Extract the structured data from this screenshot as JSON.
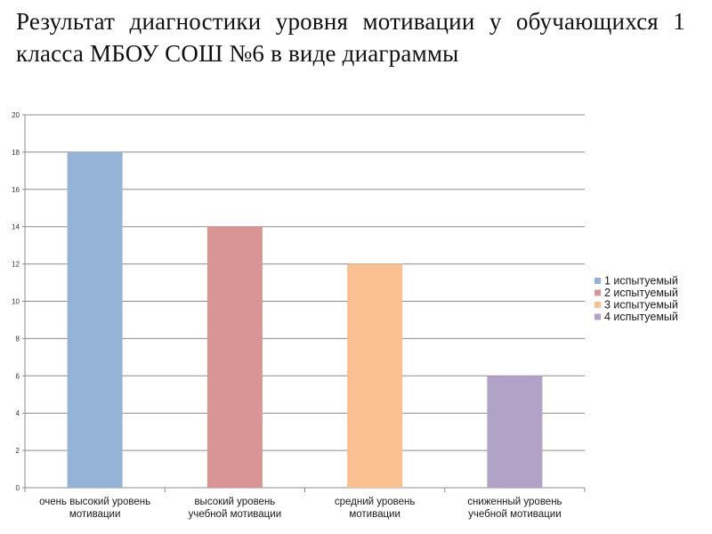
{
  "page": {
    "title": "Результат диагностики уровня мотивации у обучающихся 1 класса МБОУ СОШ №6 в виде диаграммы"
  },
  "chart_data": {
    "type": "bar",
    "title": "Результат диагностики уровня мотивации у обучающихся 1 класса МБОУ СОШ №6 в виде диаграммы",
    "xlabel": "",
    "ylabel": "",
    "ylim": [
      0,
      20
    ],
    "yticks": [
      "0",
      "2",
      "4",
      "6",
      "8",
      "10",
      "12",
      "14",
      "16",
      "18",
      "20"
    ],
    "grid": true,
    "legend_position": "right",
    "categories": [
      [
        "очень высокий уровень",
        "мотивации"
      ],
      [
        "высокий уровень",
        "учебной мотивации"
      ],
      [
        "средний уровень",
        "мотивации"
      ],
      [
        "сниженный уровень",
        "учебной мотивации"
      ]
    ],
    "series": [
      {
        "name": "1 испытуемый",
        "color": "#95b3d7",
        "values": [
          18,
          null,
          null,
          null
        ]
      },
      {
        "name": "2 испытуемый",
        "color": "#d99594",
        "values": [
          null,
          14,
          null,
          null
        ]
      },
      {
        "name": "3 испытуемый",
        "color": "#fac090",
        "values": [
          null,
          null,
          12,
          null
        ]
      },
      {
        "name": "4 испытуемый",
        "color": "#b3a2c7",
        "values": [
          null,
          null,
          null,
          6
        ]
      }
    ]
  }
}
